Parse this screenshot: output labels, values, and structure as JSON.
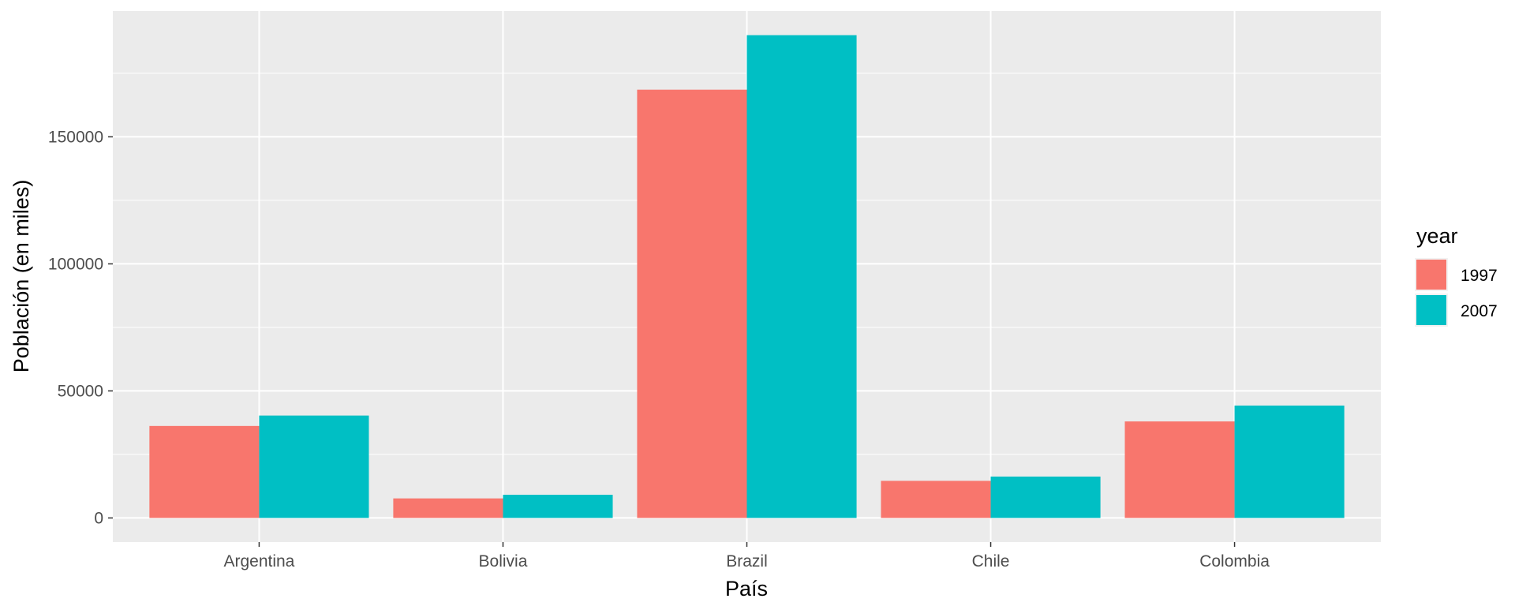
{
  "chart_data": {
    "type": "bar",
    "title": "",
    "xlabel": "País",
    "ylabel": "Población (en miles)",
    "categories": [
      "Argentina",
      "Bolivia",
      "Brazil",
      "Chile",
      "Colombia"
    ],
    "series": [
      {
        "name": "1997",
        "color": "#F8766D",
        "values": [
          36203,
          7693,
          168547,
          14600,
          37983
        ]
      },
      {
        "name": "2007",
        "color": "#00BFC4",
        "values": [
          40302,
          9119,
          190011,
          16285,
          44228
        ]
      }
    ],
    "ylim": [
      -9500,
      199500
    ],
    "yticks": [
      0,
      50000,
      100000,
      150000
    ],
    "ytick_labels": [
      "0",
      "50000",
      "100000",
      "150000"
    ],
    "legend": {
      "title": "year",
      "placement": "right"
    },
    "grid": true,
    "panel_background": "#EBEBEB",
    "grid_color": "#FFFFFF"
  }
}
